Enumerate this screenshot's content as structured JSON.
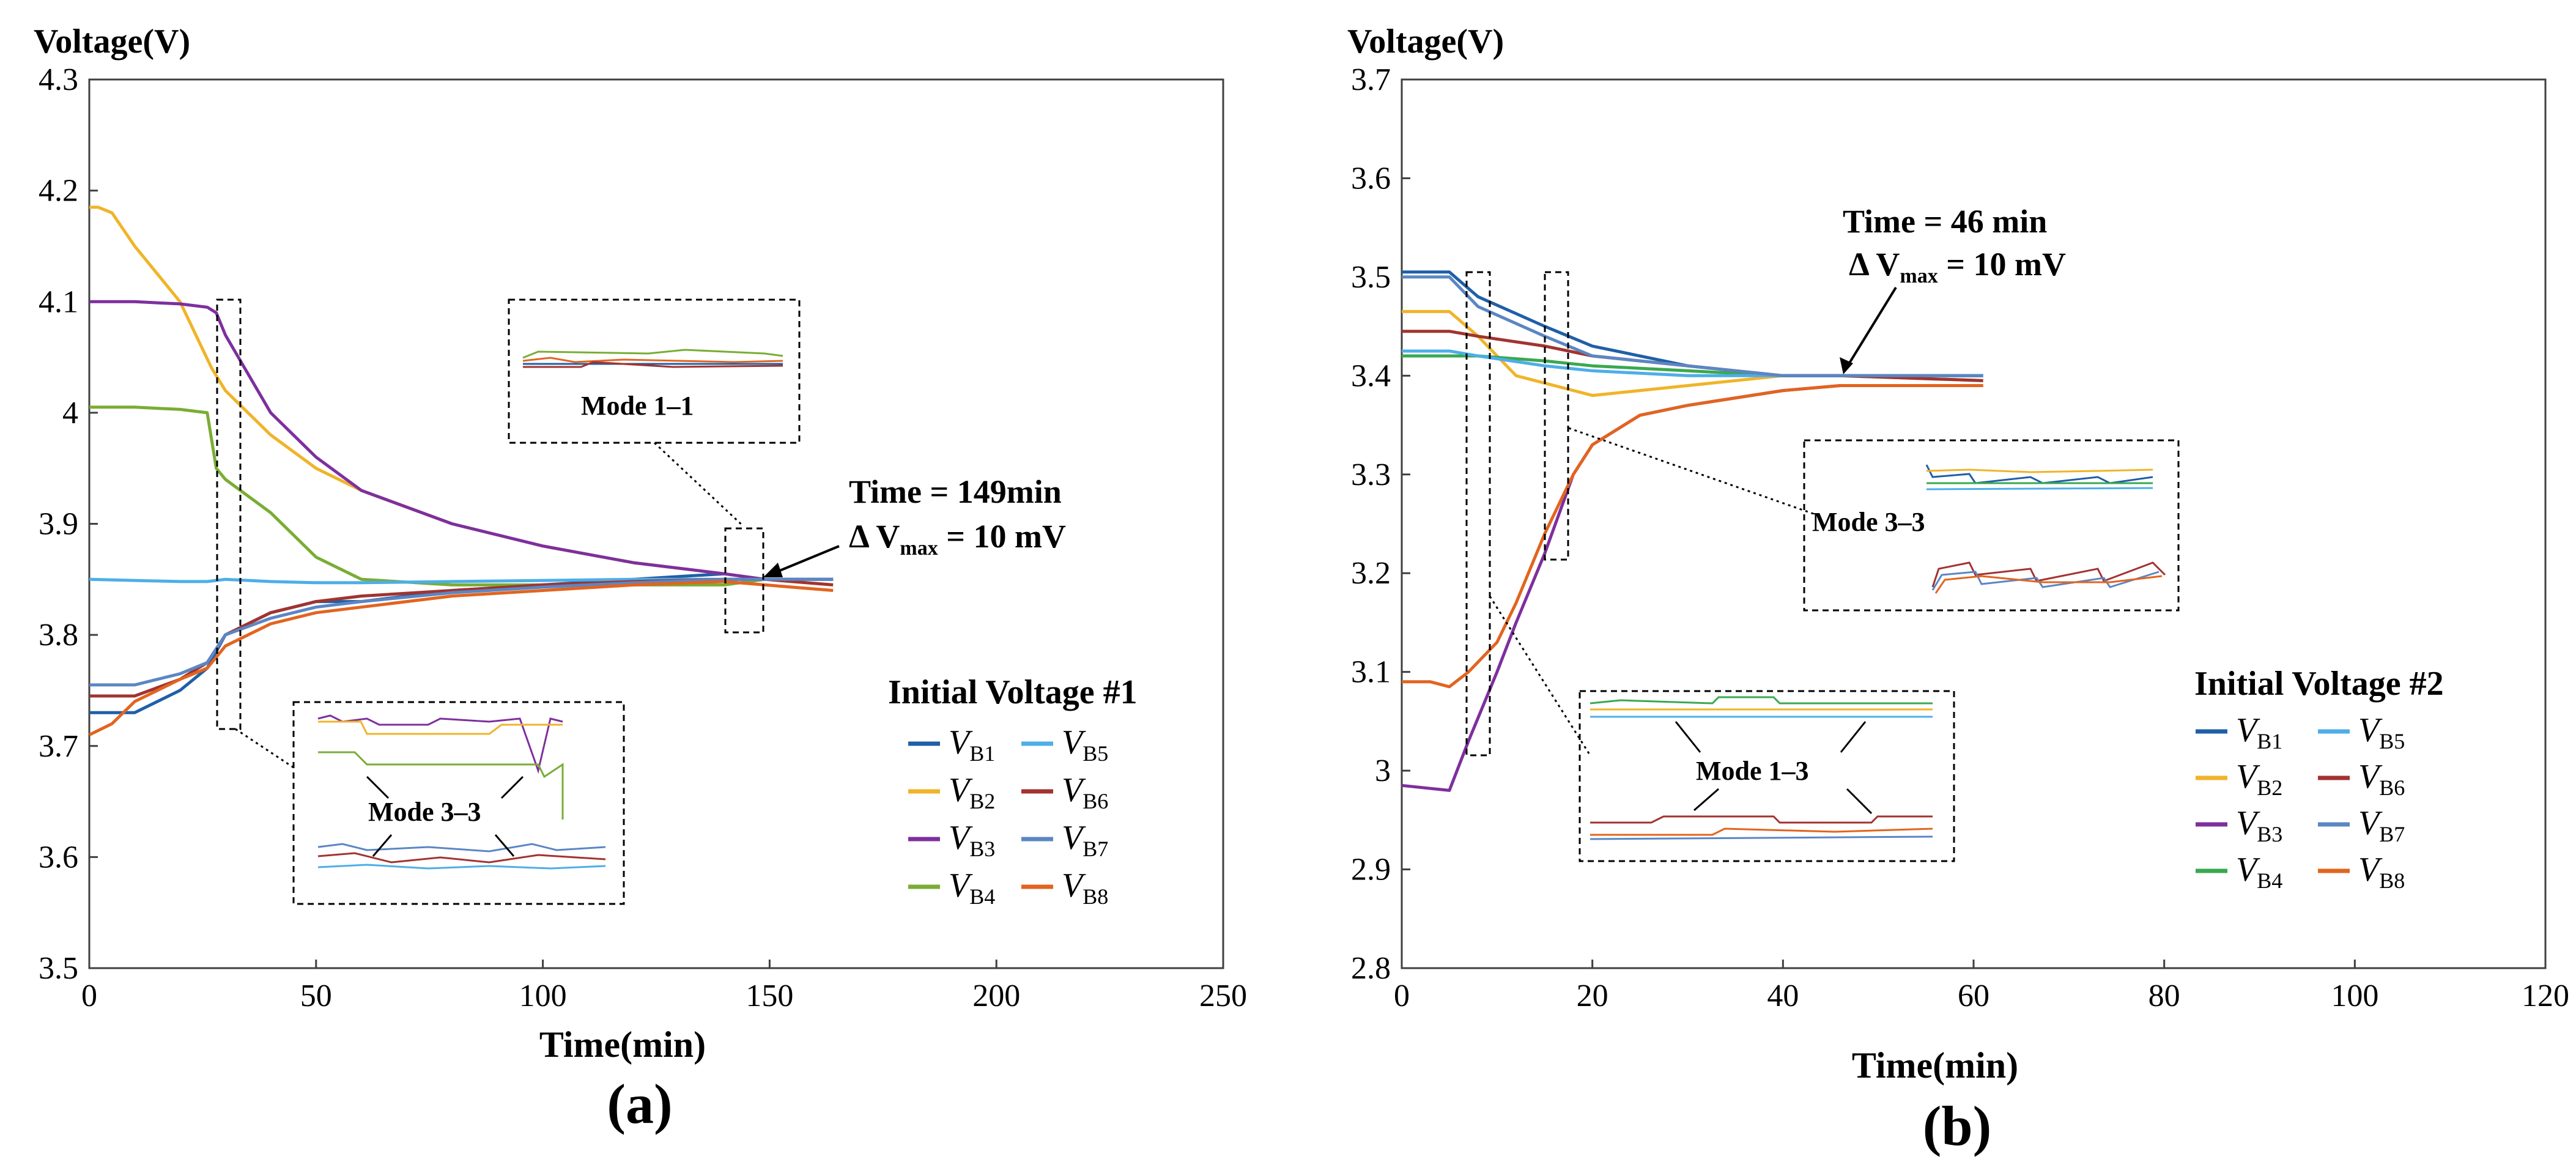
{
  "chart_data": [
    {
      "panel_label": "(a)",
      "type": "line",
      "ylabel": "Voltage(V)",
      "xlabel": "Time(min)",
      "xlim": [
        0,
        250
      ],
      "ylim": [
        3.5,
        4.3
      ],
      "xticks": [
        "0",
        "50",
        "100",
        "150",
        "200",
        "250"
      ],
      "yticks": [
        "3.5",
        "3.6",
        "3.7",
        "3.8",
        "3.9",
        "4",
        "4.1",
        "4.2",
        "4.3"
      ],
      "grid": false,
      "legend_title": "Initial Voltage #1",
      "legend_position": "lower-right",
      "annotation": {
        "time_text": "Time = 149min",
        "dv_prefix": "Δ V",
        "dv_sub": "max",
        "dv_value": " = 10 mV",
        "x": 149,
        "y": 3.85
      },
      "insets": [
        "Mode 1–1",
        "Mode 3–3"
      ],
      "series": [
        {
          "name": "VB1",
          "sym": "V",
          "sub": "B1",
          "color": "#1f5fa8",
          "x": [
            0,
            10,
            20,
            26,
            30,
            40,
            50,
            60,
            80,
            100,
            120,
            140,
            149,
            164
          ],
          "y": [
            3.73,
            3.73,
            3.75,
            3.77,
            3.8,
            3.82,
            3.83,
            3.83,
            3.84,
            3.845,
            3.85,
            3.855,
            3.85,
            3.85
          ]
        },
        {
          "name": "VB2",
          "sym": "V",
          "sub": "B2",
          "color": "#f0b429",
          "x": [
            0,
            2,
            5,
            10,
            20,
            27,
            30,
            40,
            50,
            60,
            80,
            100,
            120,
            140,
            149,
            164
          ],
          "y": [
            4.185,
            4.185,
            4.18,
            4.15,
            4.1,
            4.04,
            4.02,
            3.98,
            3.95,
            3.93,
            3.9,
            3.88,
            3.865,
            3.855,
            3.85,
            3.85
          ]
        },
        {
          "name": "VB3",
          "sym": "V",
          "sub": "B3",
          "color": "#7e2f9e",
          "x": [
            0,
            10,
            20,
            26,
            28,
            30,
            40,
            50,
            60,
            80,
            100,
            120,
            140,
            149,
            164
          ],
          "y": [
            4.1,
            4.1,
            4.098,
            4.095,
            4.09,
            4.07,
            4.0,
            3.96,
            3.93,
            3.9,
            3.88,
            3.865,
            3.855,
            3.85,
            3.85
          ]
        },
        {
          "name": "VB4",
          "sym": "V",
          "sub": "B4",
          "color": "#79ad34",
          "x": [
            0,
            10,
            20,
            26,
            28,
            30,
            40,
            50,
            60,
            80,
            100,
            120,
            140,
            149,
            164
          ],
          "y": [
            4.005,
            4.005,
            4.003,
            4.0,
            3.95,
            3.94,
            3.91,
            3.87,
            3.85,
            3.845,
            3.845,
            3.845,
            3.845,
            3.85,
            3.85
          ]
        },
        {
          "name": "VB5",
          "sym": "V",
          "sub": "B5",
          "color": "#4daee8",
          "x": [
            0,
            10,
            20,
            26,
            30,
            40,
            50,
            60,
            80,
            100,
            120,
            140,
            149,
            164
          ],
          "y": [
            3.85,
            3.849,
            3.848,
            3.848,
            3.85,
            3.848,
            3.847,
            3.847,
            3.848,
            3.849,
            3.85,
            3.85,
            3.85,
            3.85
          ]
        },
        {
          "name": "VB6",
          "sym": "V",
          "sub": "B6",
          "color": "#a2332f",
          "x": [
            0,
            10,
            20,
            26,
            30,
            40,
            50,
            60,
            80,
            100,
            120,
            140,
            149,
            164
          ],
          "y": [
            3.745,
            3.745,
            3.76,
            3.775,
            3.8,
            3.82,
            3.83,
            3.835,
            3.84,
            3.845,
            3.848,
            3.85,
            3.85,
            3.845
          ]
        },
        {
          "name": "VB7",
          "sym": "V",
          "sub": "B7",
          "color": "#5b86c4",
          "x": [
            0,
            10,
            20,
            26,
            30,
            40,
            50,
            60,
            80,
            100,
            120,
            140,
            149,
            164
          ],
          "y": [
            3.755,
            3.755,
            3.765,
            3.775,
            3.8,
            3.815,
            3.825,
            3.83,
            3.838,
            3.843,
            3.847,
            3.85,
            3.85,
            3.85
          ]
        },
        {
          "name": "VB8",
          "sym": "V",
          "sub": "B8",
          "color": "#e2641f",
          "x": [
            0,
            5,
            10,
            20,
            26,
            30,
            40,
            50,
            60,
            80,
            100,
            120,
            140,
            149,
            164
          ],
          "y": [
            3.71,
            3.72,
            3.74,
            3.76,
            3.77,
            3.79,
            3.81,
            3.82,
            3.825,
            3.835,
            3.84,
            3.845,
            3.848,
            3.845,
            3.84
          ]
        }
      ]
    },
    {
      "panel_label": "(b)",
      "type": "line",
      "ylabel": "Voltage(V)",
      "xlabel": "Time(min)",
      "xlim": [
        0,
        120
      ],
      "ylim": [
        2.8,
        3.7
      ],
      "xticks": [
        "0",
        "20",
        "40",
        "60",
        "80",
        "100",
        "120"
      ],
      "yticks": [
        "2.8",
        "2.9",
        "3",
        "3.1",
        "3.2",
        "3.3",
        "3.4",
        "3.5",
        "3.6",
        "3.7"
      ],
      "grid": false,
      "legend_title": "Initial Voltage #2",
      "legend_position": "lower-right",
      "annotation": {
        "time_text": "Time = 46 min",
        "dv_prefix": "Δ V",
        "dv_sub": "max",
        "dv_value": " = 10 mV",
        "x": 46,
        "y": 3.37
      },
      "insets": [
        "Mode 3–3",
        "Mode 1–3"
      ],
      "series": [
        {
          "name": "VB1",
          "sym": "V",
          "sub": "B1",
          "color": "#1f5fa8",
          "x": [
            0,
            3,
            5,
            8,
            15,
            20,
            30,
            40,
            46,
            61
          ],
          "y": [
            3.505,
            3.505,
            3.505,
            3.48,
            3.45,
            3.43,
            3.41,
            3.4,
            3.4,
            3.4
          ]
        },
        {
          "name": "VB2",
          "sym": "V",
          "sub": "B2",
          "color": "#f0b429",
          "x": [
            0,
            3,
            5,
            8,
            12,
            20,
            30,
            40,
            46,
            61
          ],
          "y": [
            3.465,
            3.465,
            3.465,
            3.44,
            3.4,
            3.38,
            3.39,
            3.4,
            3.4,
            3.395
          ]
        },
        {
          "name": "VB3",
          "sym": "V",
          "sub": "B3",
          "color": "#7e2f9e",
          "x": [
            0,
            3,
            5,
            7,
            10,
            12,
            15,
            18,
            20,
            25,
            30,
            40,
            46,
            61
          ],
          "y": [
            2.985,
            2.982,
            2.98,
            3.03,
            3.1,
            3.15,
            3.22,
            3.3,
            3.33,
            3.36,
            3.37,
            3.385,
            3.39,
            3.39
          ]
        },
        {
          "name": "VB4",
          "sym": "V",
          "sub": "B4",
          "color": "#3aa850",
          "x": [
            0,
            3,
            5,
            8,
            15,
            20,
            30,
            40,
            46,
            61
          ],
          "y": [
            3.42,
            3.42,
            3.42,
            3.42,
            3.415,
            3.41,
            3.405,
            3.4,
            3.4,
            3.4
          ]
        },
        {
          "name": "VB5",
          "sym": "V",
          "sub": "B5",
          "color": "#4daee8",
          "x": [
            0,
            3,
            5,
            8,
            15,
            20,
            30,
            40,
            46,
            61
          ],
          "y": [
            3.425,
            3.425,
            3.425,
            3.42,
            3.41,
            3.405,
            3.4,
            3.4,
            3.4,
            3.4
          ]
        },
        {
          "name": "VB6",
          "sym": "V",
          "sub": "B6",
          "color": "#a2332f",
          "x": [
            0,
            3,
            5,
            8,
            15,
            20,
            30,
            40,
            46,
            61
          ],
          "y": [
            3.445,
            3.445,
            3.445,
            3.44,
            3.43,
            3.42,
            3.41,
            3.4,
            3.4,
            3.395
          ]
        },
        {
          "name": "VB7",
          "sym": "V",
          "sub": "B7",
          "color": "#5b86c4",
          "x": [
            0,
            3,
            5,
            8,
            15,
            20,
            30,
            40,
            46,
            61
          ],
          "y": [
            3.5,
            3.5,
            3.5,
            3.47,
            3.44,
            3.42,
            3.41,
            3.4,
            3.4,
            3.4
          ]
        },
        {
          "name": "VB8",
          "sym": "V",
          "sub": "B8",
          "color": "#e2641f",
          "x": [
            0,
            3,
            5,
            7,
            10,
            12,
            15,
            18,
            20,
            25,
            30,
            40,
            46,
            61
          ],
          "y": [
            3.09,
            3.09,
            3.085,
            3.1,
            3.13,
            3.17,
            3.24,
            3.3,
            3.33,
            3.36,
            3.37,
            3.385,
            3.39,
            3.39
          ]
        }
      ]
    }
  ]
}
